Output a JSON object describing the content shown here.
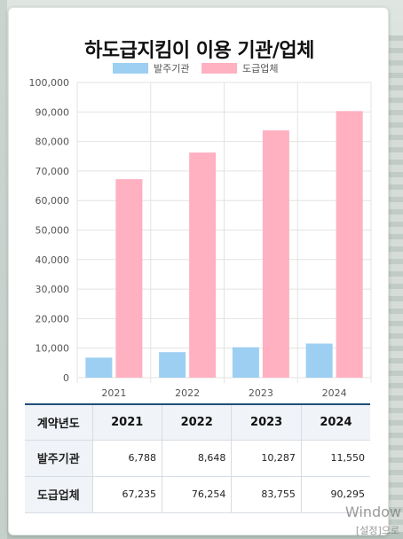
{
  "page": {
    "title": "하도급지킴이 이용 기관/업체",
    "watermark_line1": "Window",
    "watermark_line2": "[설정]으로"
  },
  "chart_data": {
    "type": "bar",
    "title": "하도급지킴이 이용 기관/업체",
    "categories": [
      "2021",
      "2022",
      "2023",
      "2024"
    ],
    "series": [
      {
        "name": "발주기관",
        "values": [
          6788,
          8648,
          10287,
          11550
        ],
        "color": "#9ccff2"
      },
      {
        "name": "도급업체",
        "values": [
          67235,
          76254,
          83755,
          90295
        ],
        "color": "#ffb0c1"
      }
    ],
    "ylim": [
      0,
      100000
    ],
    "yticks": [
      "0",
      "10,000",
      "20,000",
      "30,000",
      "40,000",
      "50,000",
      "60,000",
      "70,000",
      "80,000",
      "90,000",
      "100,000"
    ],
    "legend_position": "top-center",
    "grid": true
  },
  "table": {
    "header": [
      "계약년도",
      "2021",
      "2022",
      "2023",
      "2024"
    ],
    "rows": [
      {
        "label": "발주기관",
        "cells": [
          "6,788",
          "8,648",
          "10,287",
          "11,550"
        ]
      },
      {
        "label": "도급업체",
        "cells": [
          "67,235",
          "76,254",
          "83,755",
          "90,295"
        ]
      }
    ]
  }
}
